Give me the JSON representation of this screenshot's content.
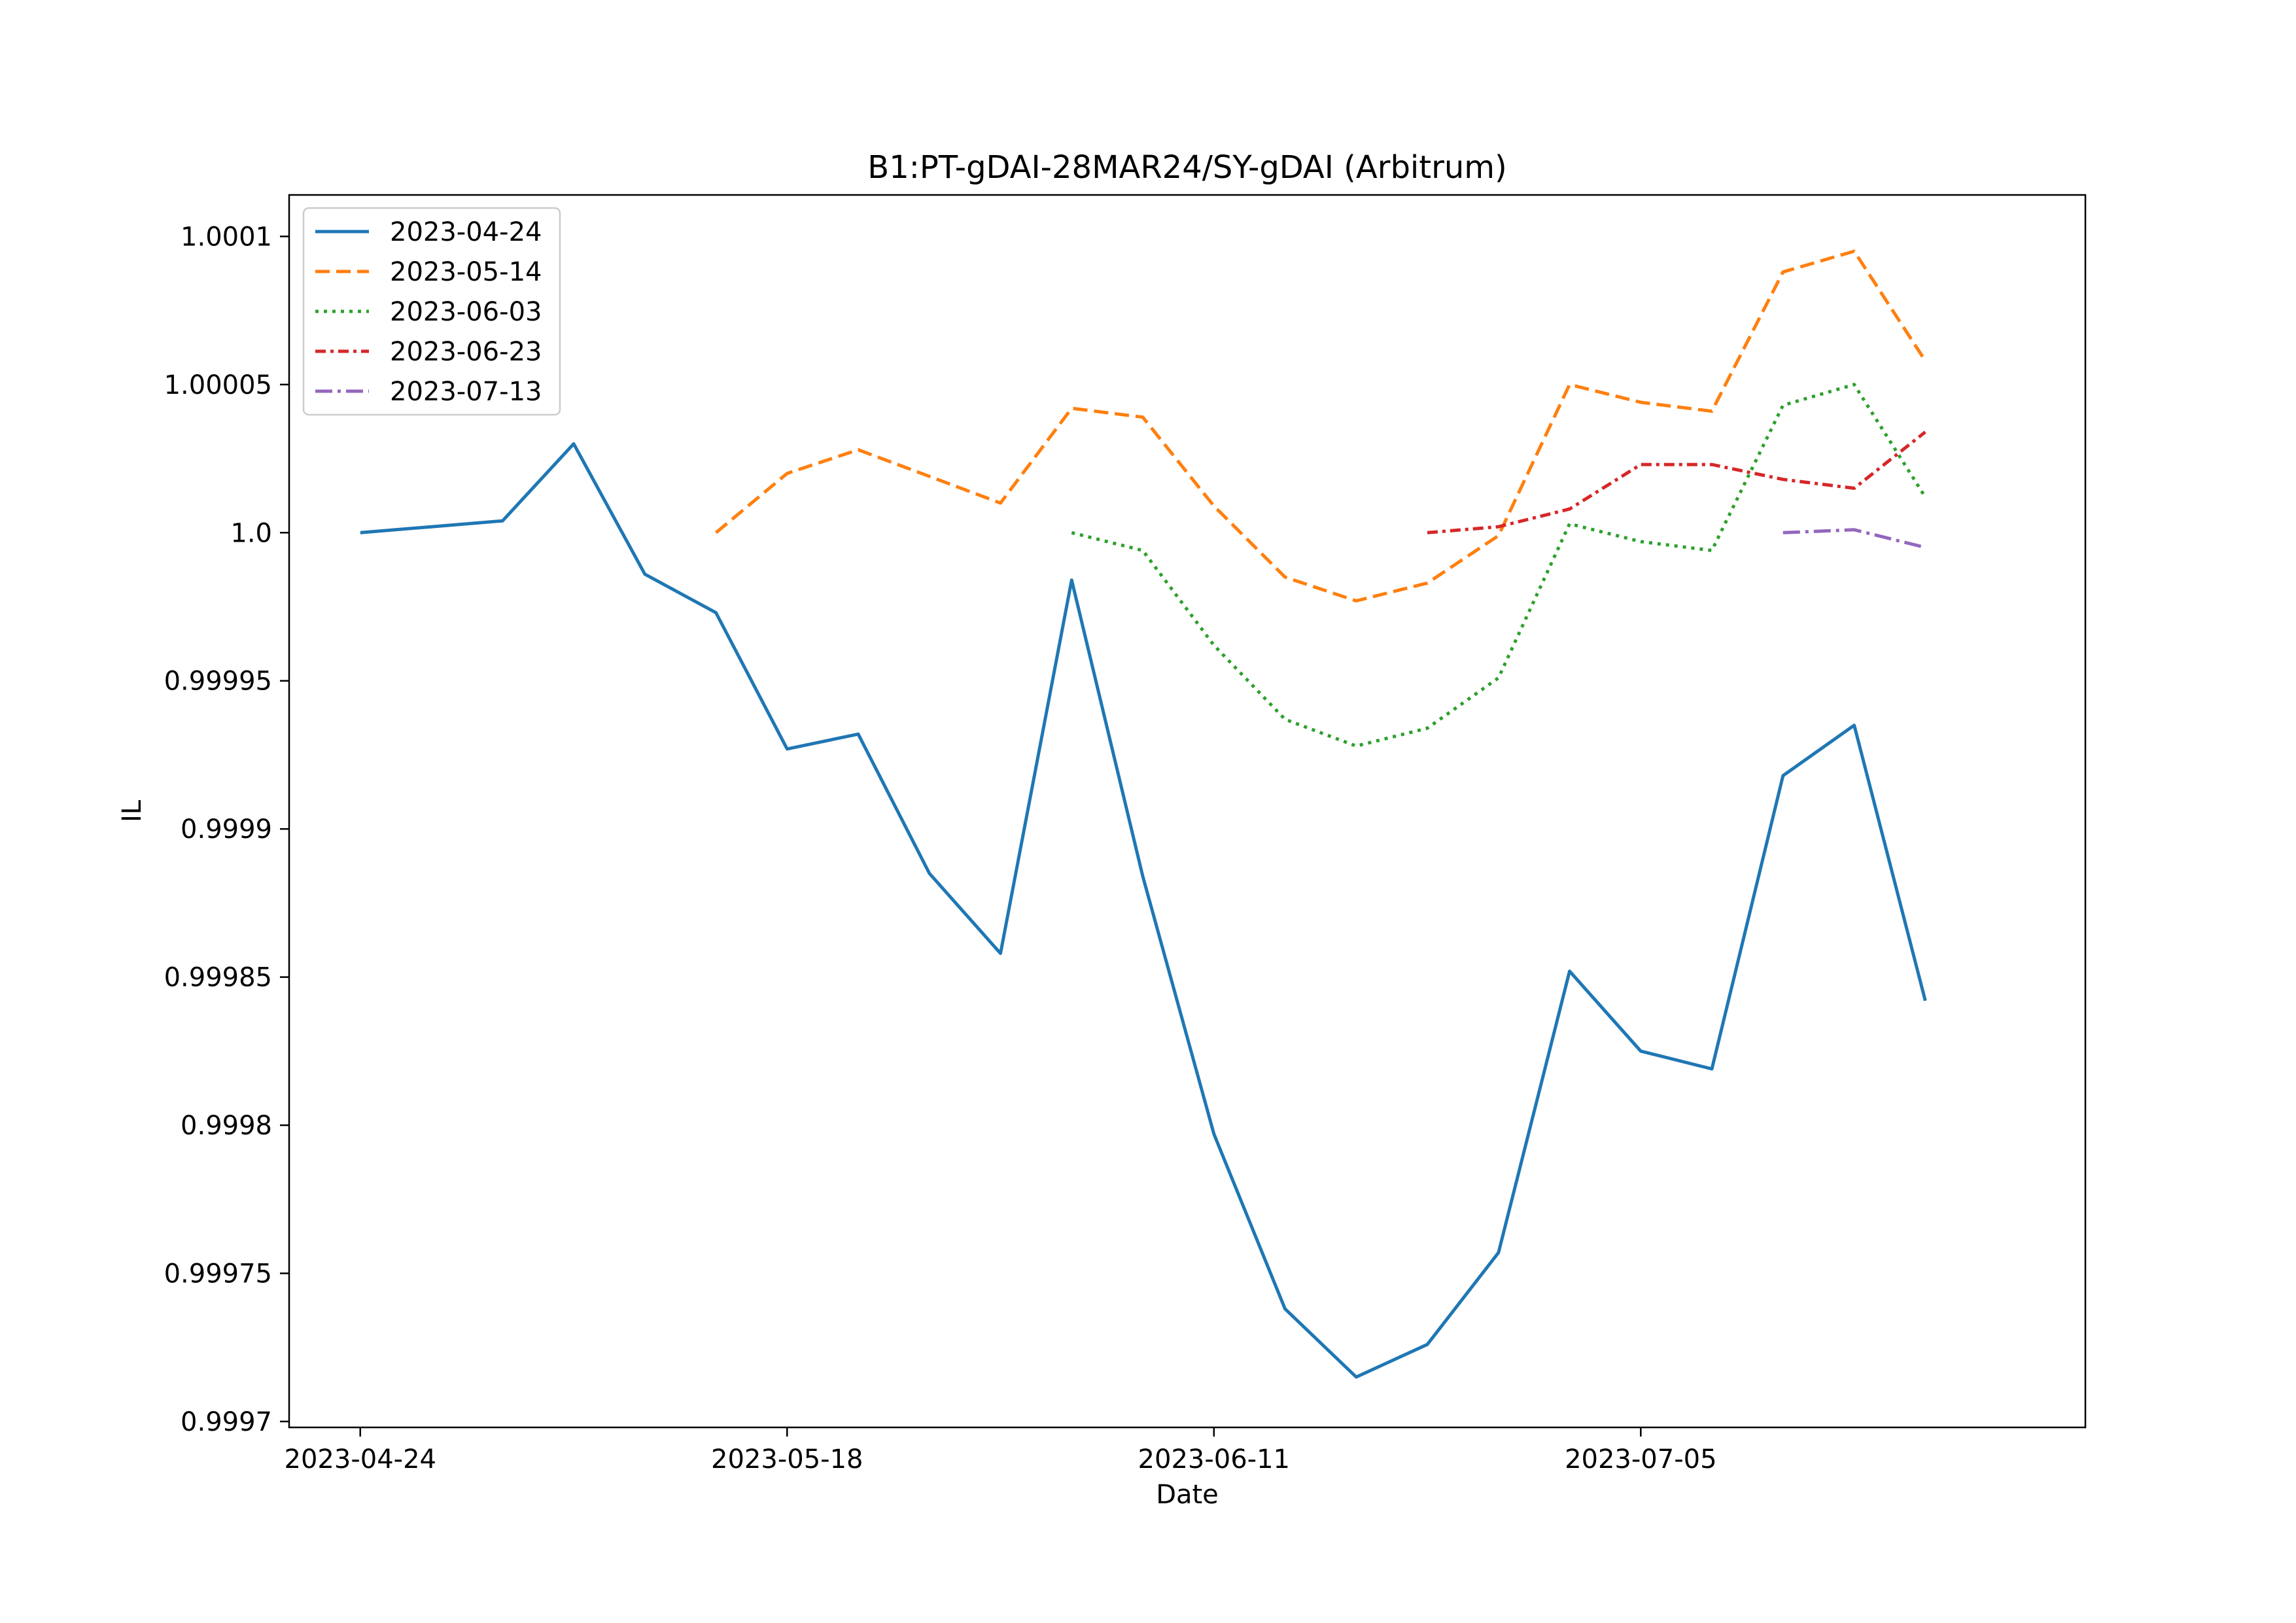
{
  "chart_data": {
    "type": "line",
    "title": "B1:PT-gDAI-28MAR24/SY-gDAI (Arbitrum)",
    "xlabel": "Date",
    "ylabel": "IL",
    "xlim": [
      "2023-04-20",
      "2023-07-30"
    ],
    "ylim": [
      0.999698,
      1.000114
    ],
    "xticks": [
      "2023-04-24",
      "2023-05-18",
      "2023-06-11",
      "2023-07-05"
    ],
    "yticks": [
      0.9997,
      0.99975,
      0.9998,
      0.99985,
      0.9999,
      0.99995,
      1.0,
      1.00005,
      1.0001
    ],
    "ytick_labels": [
      "0.9997",
      "0.99975",
      "0.9998",
      "0.99985",
      "0.9999",
      "0.99995",
      "1.0",
      "1.00005",
      "1.0001"
    ],
    "grid": false,
    "legend_position": "top-left",
    "series": [
      {
        "name": "2023-04-24",
        "color": "#1f77b4",
        "dash": "solid",
        "x": [
          "2023-04-24",
          "2023-04-28",
          "2023-05-02",
          "2023-05-06",
          "2023-05-10",
          "2023-05-14",
          "2023-05-18",
          "2023-05-22",
          "2023-05-26",
          "2023-05-30",
          "2023-06-03",
          "2023-06-07",
          "2023-06-11",
          "2023-06-15",
          "2023-06-19",
          "2023-06-23",
          "2023-06-27",
          "2023-07-01",
          "2023-07-05",
          "2023-07-09",
          "2023-07-13",
          "2023-07-17",
          "2023-07-21"
        ],
        "y": [
          1.0,
          1.000002,
          1.000004,
          1.00003,
          0.999986,
          0.999973,
          0.999927,
          0.999932,
          0.999885,
          0.999858,
          0.999984,
          0.999884,
          0.999797,
          0.999738,
          0.999715,
          0.999726,
          0.999757,
          0.999852,
          0.999825,
          0.999819,
          0.999918,
          0.999935,
          0.999842
        ]
      },
      {
        "name": "2023-05-14",
        "color": "#ff7f0e",
        "dash": "dashed",
        "x": [
          "2023-05-14",
          "2023-05-18",
          "2023-05-22",
          "2023-05-26",
          "2023-05-30",
          "2023-06-03",
          "2023-06-07",
          "2023-06-11",
          "2023-06-15",
          "2023-06-19",
          "2023-06-23",
          "2023-06-27",
          "2023-07-01",
          "2023-07-05",
          "2023-07-09",
          "2023-07-13",
          "2023-07-17",
          "2023-07-21"
        ],
        "y": [
          1.0,
          1.00002,
          1.000028,
          1.000019,
          1.00001,
          1.000042,
          1.000039,
          1.000009,
          0.999985,
          0.999977,
          0.999983,
          0.999999,
          1.00005,
          1.000044,
          1.000041,
          1.000088,
          1.000095,
          1.000058
        ]
      },
      {
        "name": "2023-06-03",
        "color": "#2ca02c",
        "dash": "dotted",
        "x": [
          "2023-06-03",
          "2023-06-07",
          "2023-06-11",
          "2023-06-15",
          "2023-06-19",
          "2023-06-23",
          "2023-06-27",
          "2023-07-01",
          "2023-07-05",
          "2023-07-09",
          "2023-07-13",
          "2023-07-17",
          "2023-07-21"
        ],
        "y": [
          1.0,
          0.999994,
          0.999962,
          0.999937,
          0.999928,
          0.999934,
          0.999951,
          1.000003,
          0.999997,
          0.999994,
          1.000043,
          1.00005,
          1.000012
        ]
      },
      {
        "name": "2023-06-23",
        "color": "#d62728",
        "dash": "dashdot-short",
        "x": [
          "2023-06-23",
          "2023-06-27",
          "2023-07-01",
          "2023-07-05",
          "2023-07-09",
          "2023-07-13",
          "2023-07-17",
          "2023-07-21"
        ],
        "y": [
          1.0,
          1.000002,
          1.000008,
          1.000023,
          1.000023,
          1.000018,
          1.000015,
          1.000034
        ]
      },
      {
        "name": "2023-07-13",
        "color": "#9467bd",
        "dash": "dashdot",
        "x": [
          "2023-07-13",
          "2023-07-17",
          "2023-07-21"
        ],
        "y": [
          1.0,
          1.000001,
          0.999995
        ]
      }
    ]
  }
}
